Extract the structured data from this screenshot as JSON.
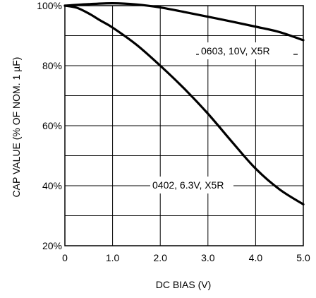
{
  "chart_data": {
    "type": "line",
    "title": "",
    "xlabel": "DC BIAS (V)",
    "ylabel": "CAP VALUE (% OF NOM. 1 µF)",
    "xlim": [
      0,
      5
    ],
    "ylim": [
      20,
      100
    ],
    "x_ticks": [
      "0",
      "1.0",
      "2.0",
      "3.0",
      "4.0",
      "5.0"
    ],
    "y_ticks": [
      "20%",
      "40%",
      "60%",
      "80%",
      "100%"
    ],
    "grid": true,
    "legend": "none",
    "series": [
      {
        "name": "0603, 10V, X5R",
        "x": [
          0,
          0.5,
          1.0,
          1.5,
          2.0,
          2.5,
          3.0,
          3.5,
          4.0,
          4.5,
          5.0
        ],
        "y": [
          100,
          100.5,
          100.8,
          100.4,
          99.4,
          97.9,
          96.3,
          94.7,
          93.0,
          91.2,
          88.5
        ]
      },
      {
        "name": "0402, 6.3V, X5R",
        "x": [
          0,
          0.25,
          0.5,
          0.75,
          1.0,
          1.5,
          2.0,
          2.5,
          3.0,
          3.5,
          4.0,
          4.5,
          5.0
        ],
        "y": [
          100,
          99.3,
          97.4,
          95.0,
          92.7,
          87.0,
          80.0,
          72.4,
          64.0,
          54.7,
          45.7,
          38.8,
          33.8
        ]
      }
    ],
    "annotations": [
      "0603, 10V, X5R",
      "0402, 6.3V, X5R"
    ],
    "line_color": "#000000"
  }
}
